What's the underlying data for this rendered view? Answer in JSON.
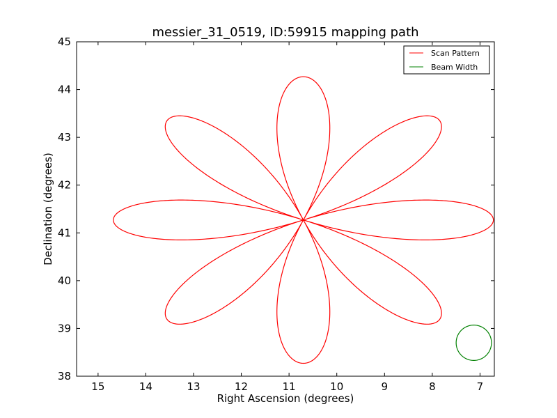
{
  "chart_data": {
    "type": "line",
    "title": "messier_31_0519, ID:59915 mapping path",
    "xlabel": "Right Ascension (degrees)",
    "ylabel": "Declination (degrees)",
    "xlim": [
      15.45,
      6.7
    ],
    "ylim": [
      38,
      45
    ],
    "x_inverted": true,
    "xticks": [
      15,
      14,
      13,
      12,
      11,
      10,
      9,
      8,
      7
    ],
    "yticks": [
      38,
      39,
      40,
      41,
      42,
      43,
      44,
      45
    ],
    "grid": false,
    "legend": {
      "location": "upper right",
      "entries": [
        "Scan Pattern",
        "Beam Width"
      ]
    },
    "series": [
      {
        "name": "Scan Pattern",
        "kind": "rose-curve",
        "color": "#ff0000",
        "center": [
          10.7,
          41.27
        ],
        "petals": 8,
        "ra_half_width": 3.98,
        "dec_half_height": 3.0
      },
      {
        "name": "Beam Width",
        "kind": "circle",
        "color": "#008000",
        "center": [
          7.13,
          38.7
        ],
        "radius": 0.37
      }
    ]
  }
}
